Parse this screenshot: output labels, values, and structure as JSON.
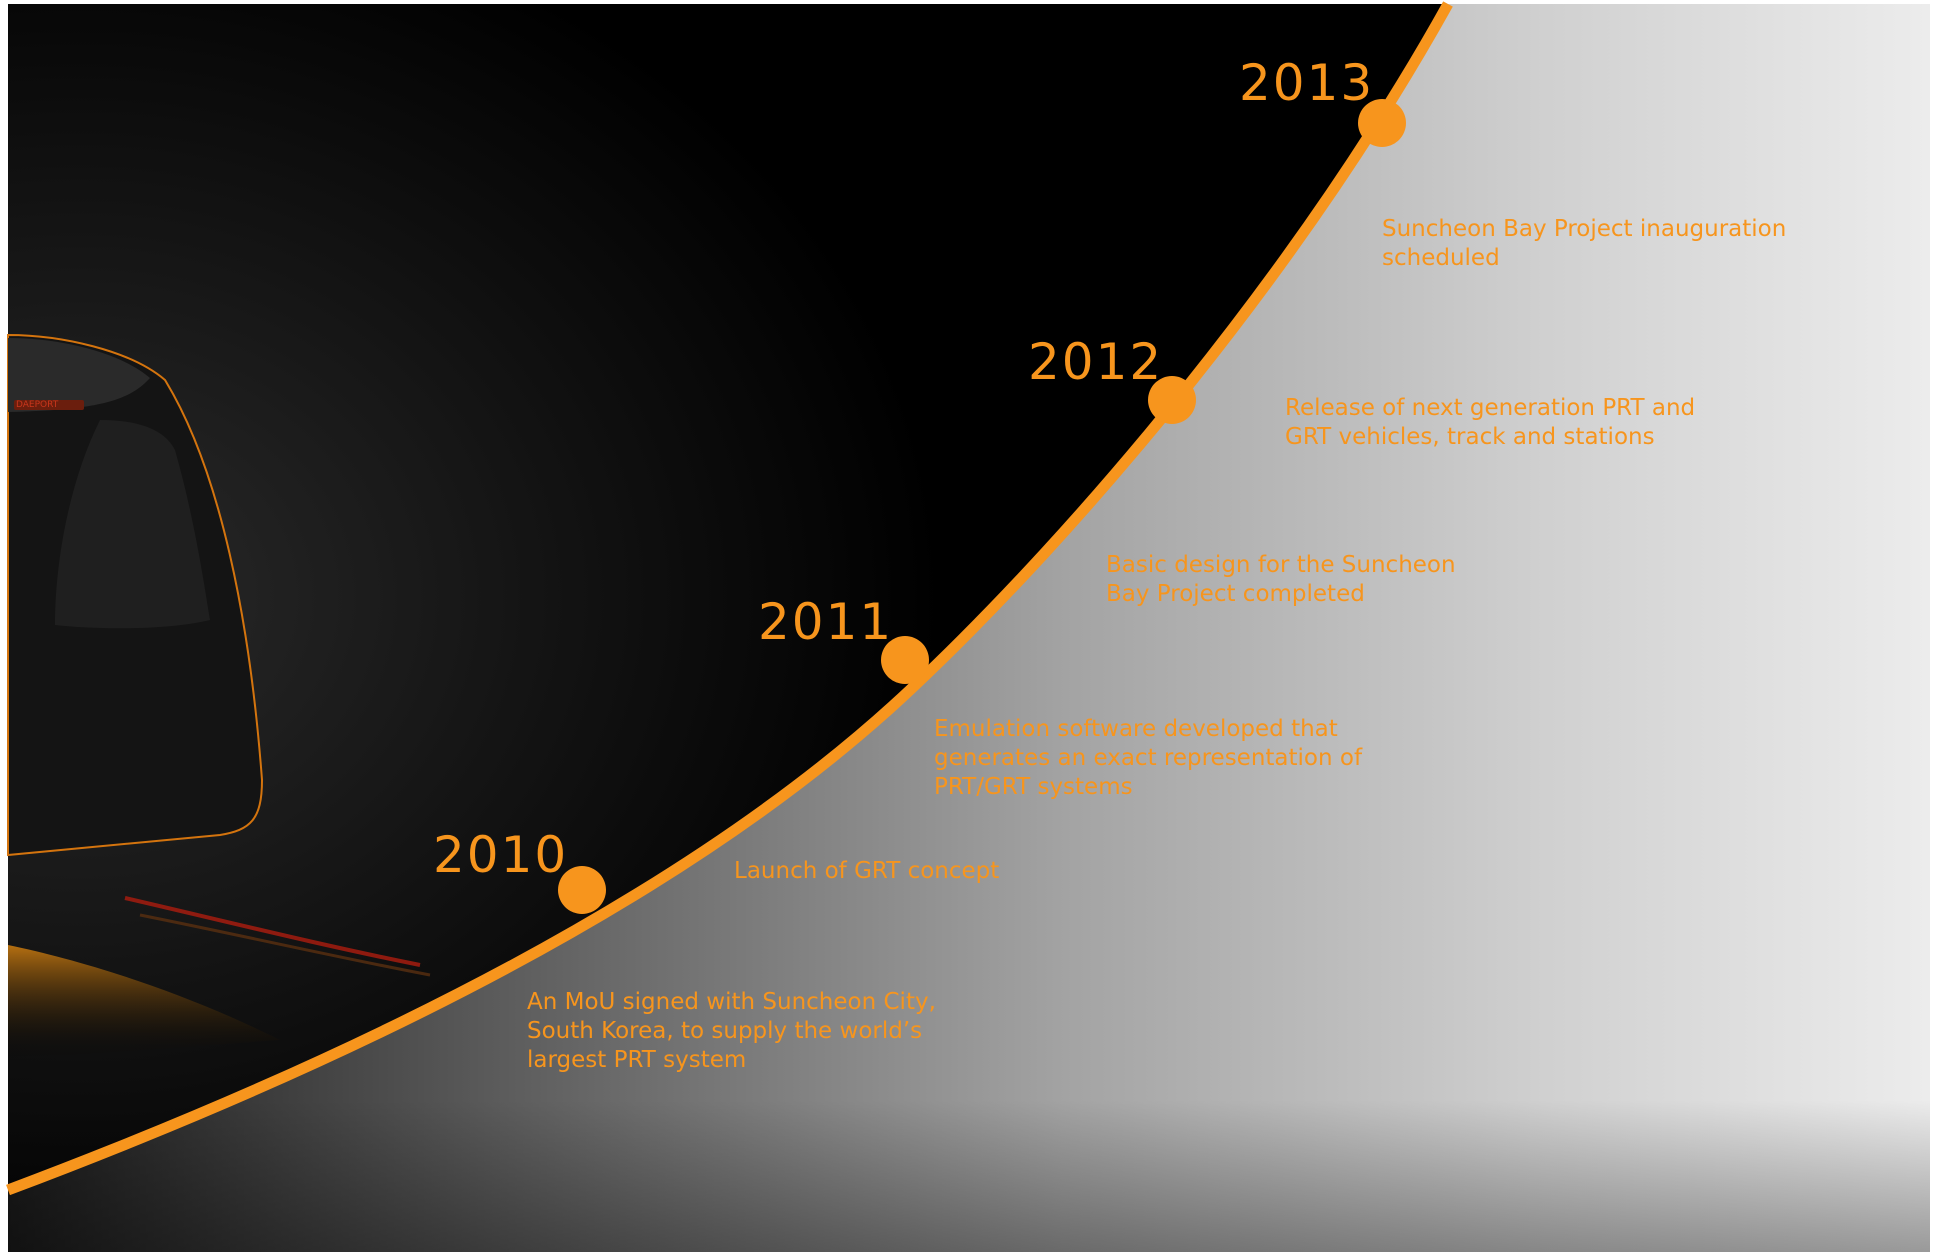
{
  "colors": {
    "accent": "#f7951d",
    "dark": "#000000",
    "light": "#e8e8e8"
  },
  "vehicle": {
    "badge": "DAEPORT"
  },
  "timeline": {
    "milestones": [
      {
        "year": "2010",
        "note": "An MoU signed with Suncheon City,\nSouth Korea, to supply the world’s\nlargest PRT system"
      },
      {
        "year": "2011",
        "note": "Launch of GRT concept"
      },
      {
        "year": "",
        "note": "Emulation software developed that\ngenerates an exact representation of\nPRT/GRT systems"
      },
      {
        "year": "2012",
        "note": "Basic design for the Suncheon\nBay Project completed"
      },
      {
        "year": "",
        "note": "Release of next generation PRT and\nGRT vehicles, track and stations"
      },
      {
        "year": "2013",
        "note": "Suncheon Bay Project  inauguration\nscheduled"
      }
    ]
  }
}
